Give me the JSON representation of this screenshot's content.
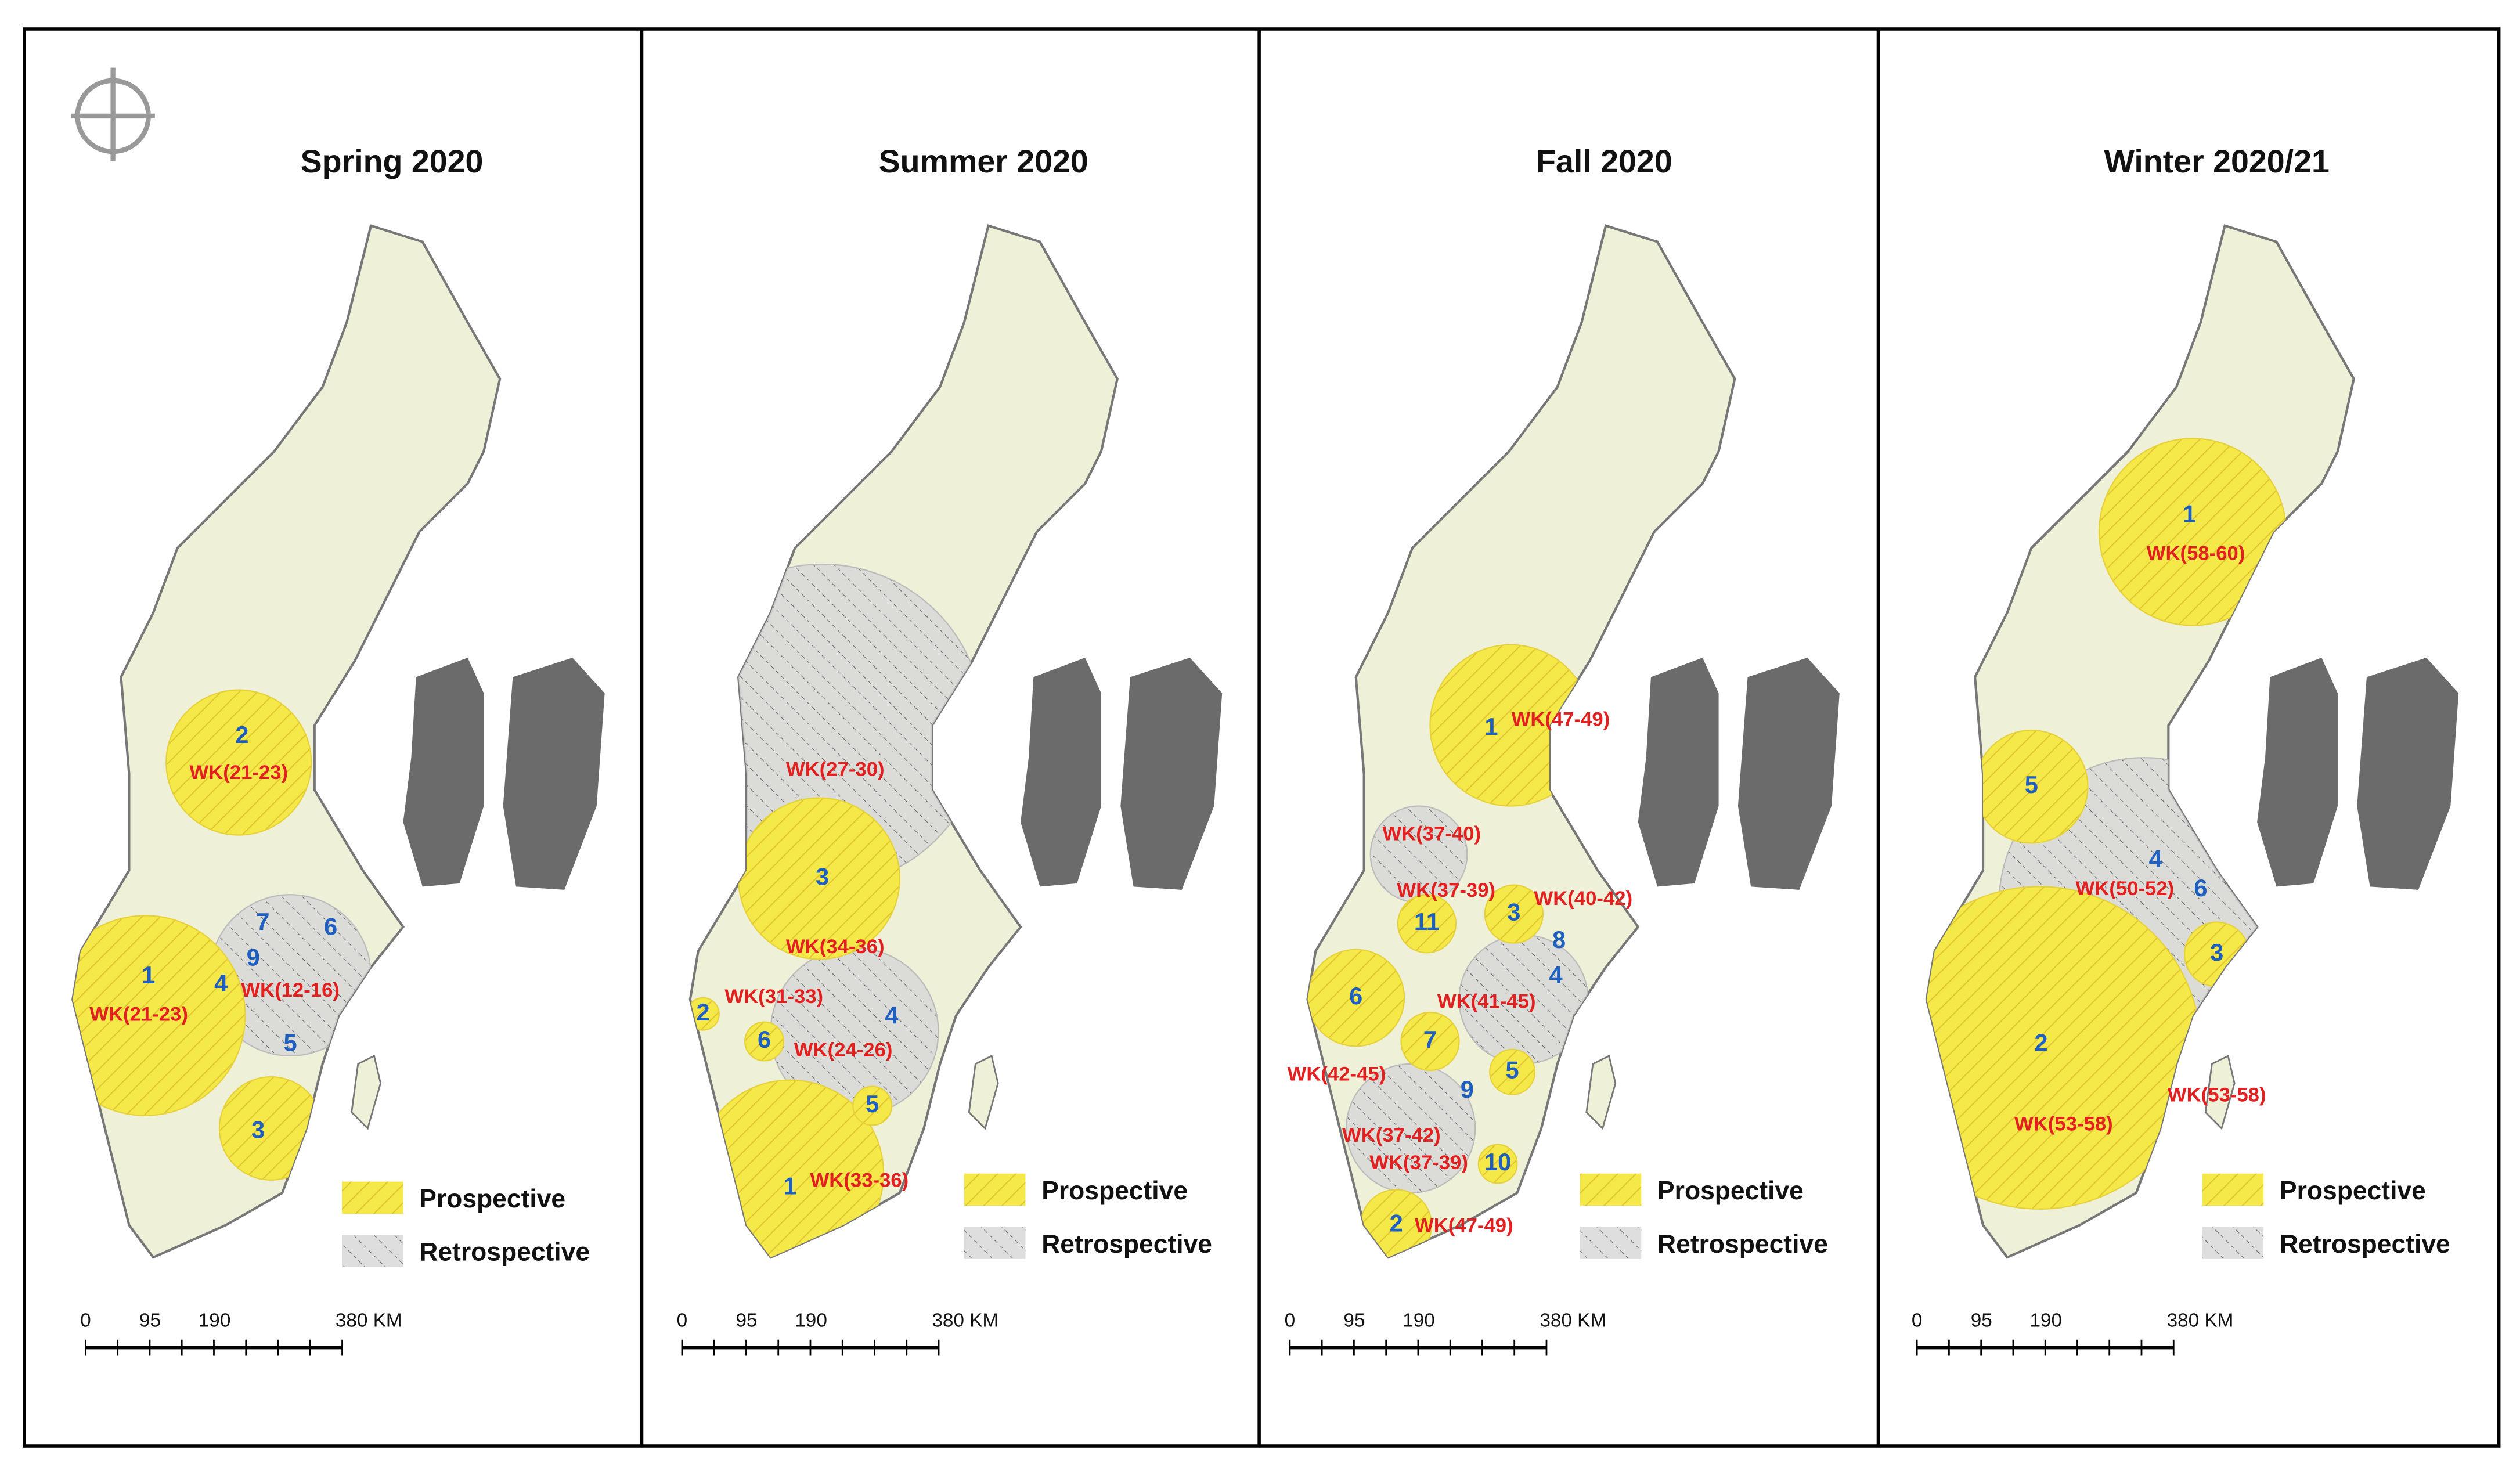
{
  "panels": [
    {
      "title": "Spring 2020",
      "clusters": [
        "2",
        "1",
        "3",
        "7",
        "9",
        "6",
        "4",
        "5"
      ],
      "weeks": [
        "WK(21-23)",
        "WK(21-23)",
        "WK(12-16)"
      ],
      "legend": [
        "Prospective",
        "Retrospective"
      ],
      "scale": [
        "0",
        "95",
        "190",
        "380 KM"
      ]
    },
    {
      "title": "Summer 2020",
      "clusters": [
        "3",
        "2",
        "6",
        "4",
        "5",
        "1"
      ],
      "weeks": [
        "WK(27-30)",
        "WK(34-36)",
        "WK(31-33)",
        "WK(24-26)",
        "WK(33-36)"
      ],
      "legend": [
        "Prospective",
        "Retrospective"
      ],
      "scale": [
        "0",
        "95",
        "190",
        "380 KM"
      ]
    },
    {
      "title": "Fall 2020",
      "clusters": [
        "1",
        "11",
        "3",
        "8",
        "4",
        "6",
        "7",
        "5",
        "9",
        "10",
        "2"
      ],
      "weeks": [
        "WK(47-49)",
        "WK(37-40)",
        "WK(37-39)",
        "WK(40-42)",
        "WK(41-45)",
        "WK(42-45)",
        "WK(37-42)",
        "WK(37-39)",
        "WK(47-49)"
      ],
      "legend": [
        "Prospective",
        "Retrospective"
      ],
      "scale": [
        "0",
        "95",
        "190",
        "380 KM"
      ]
    },
    {
      "title": "Winter 2020/21",
      "clusters": [
        "1",
        "5",
        "4",
        "6",
        "3",
        "2"
      ],
      "weeks": [
        "WK(58-60)",
        "WK(50-52)",
        "WK(53-58)",
        "WK(53-58)"
      ],
      "legend": [
        "Prospective",
        "Retrospective"
      ],
      "scale": [
        "0",
        "95",
        "190",
        "380 KM"
      ]
    }
  ]
}
